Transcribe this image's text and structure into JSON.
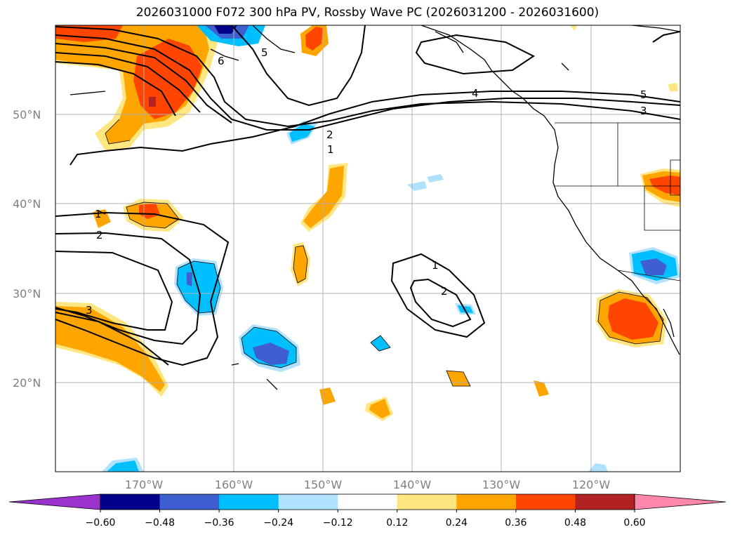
{
  "title": "2026031000 F072 300 hPa PV, Rossby Wave PC (2026031200 - 2026031600)",
  "map": {
    "lat_labels": [
      "50°N",
      "40°N",
      "30°N",
      "20°N"
    ],
    "lon_labels": [
      "170°W",
      "160°W",
      "150°W",
      "140°W",
      "130°W",
      "120°W"
    ],
    "contour_labels": [
      "6",
      "5",
      "4",
      "5",
      "3",
      "2",
      "1",
      "1",
      "2",
      "3",
      "1",
      "2"
    ]
  },
  "colorbar": {
    "ticks": [
      "−0.60",
      "−0.48",
      "−0.36",
      "−0.24",
      "−0.12",
      "0.12",
      "0.24",
      "0.36",
      "0.48",
      "0.60"
    ],
    "colors": [
      "#9933cc",
      "#00008b",
      "#3d5fd0",
      "#00bfff",
      "#b0e2ff",
      "#ffffff",
      "#ffe680",
      "#ffa500",
      "#ff4500",
      "#b22222",
      "#ff88aa"
    ]
  },
  "colors": {
    "grid": "#b0b0b0",
    "coast": "#000000"
  }
}
